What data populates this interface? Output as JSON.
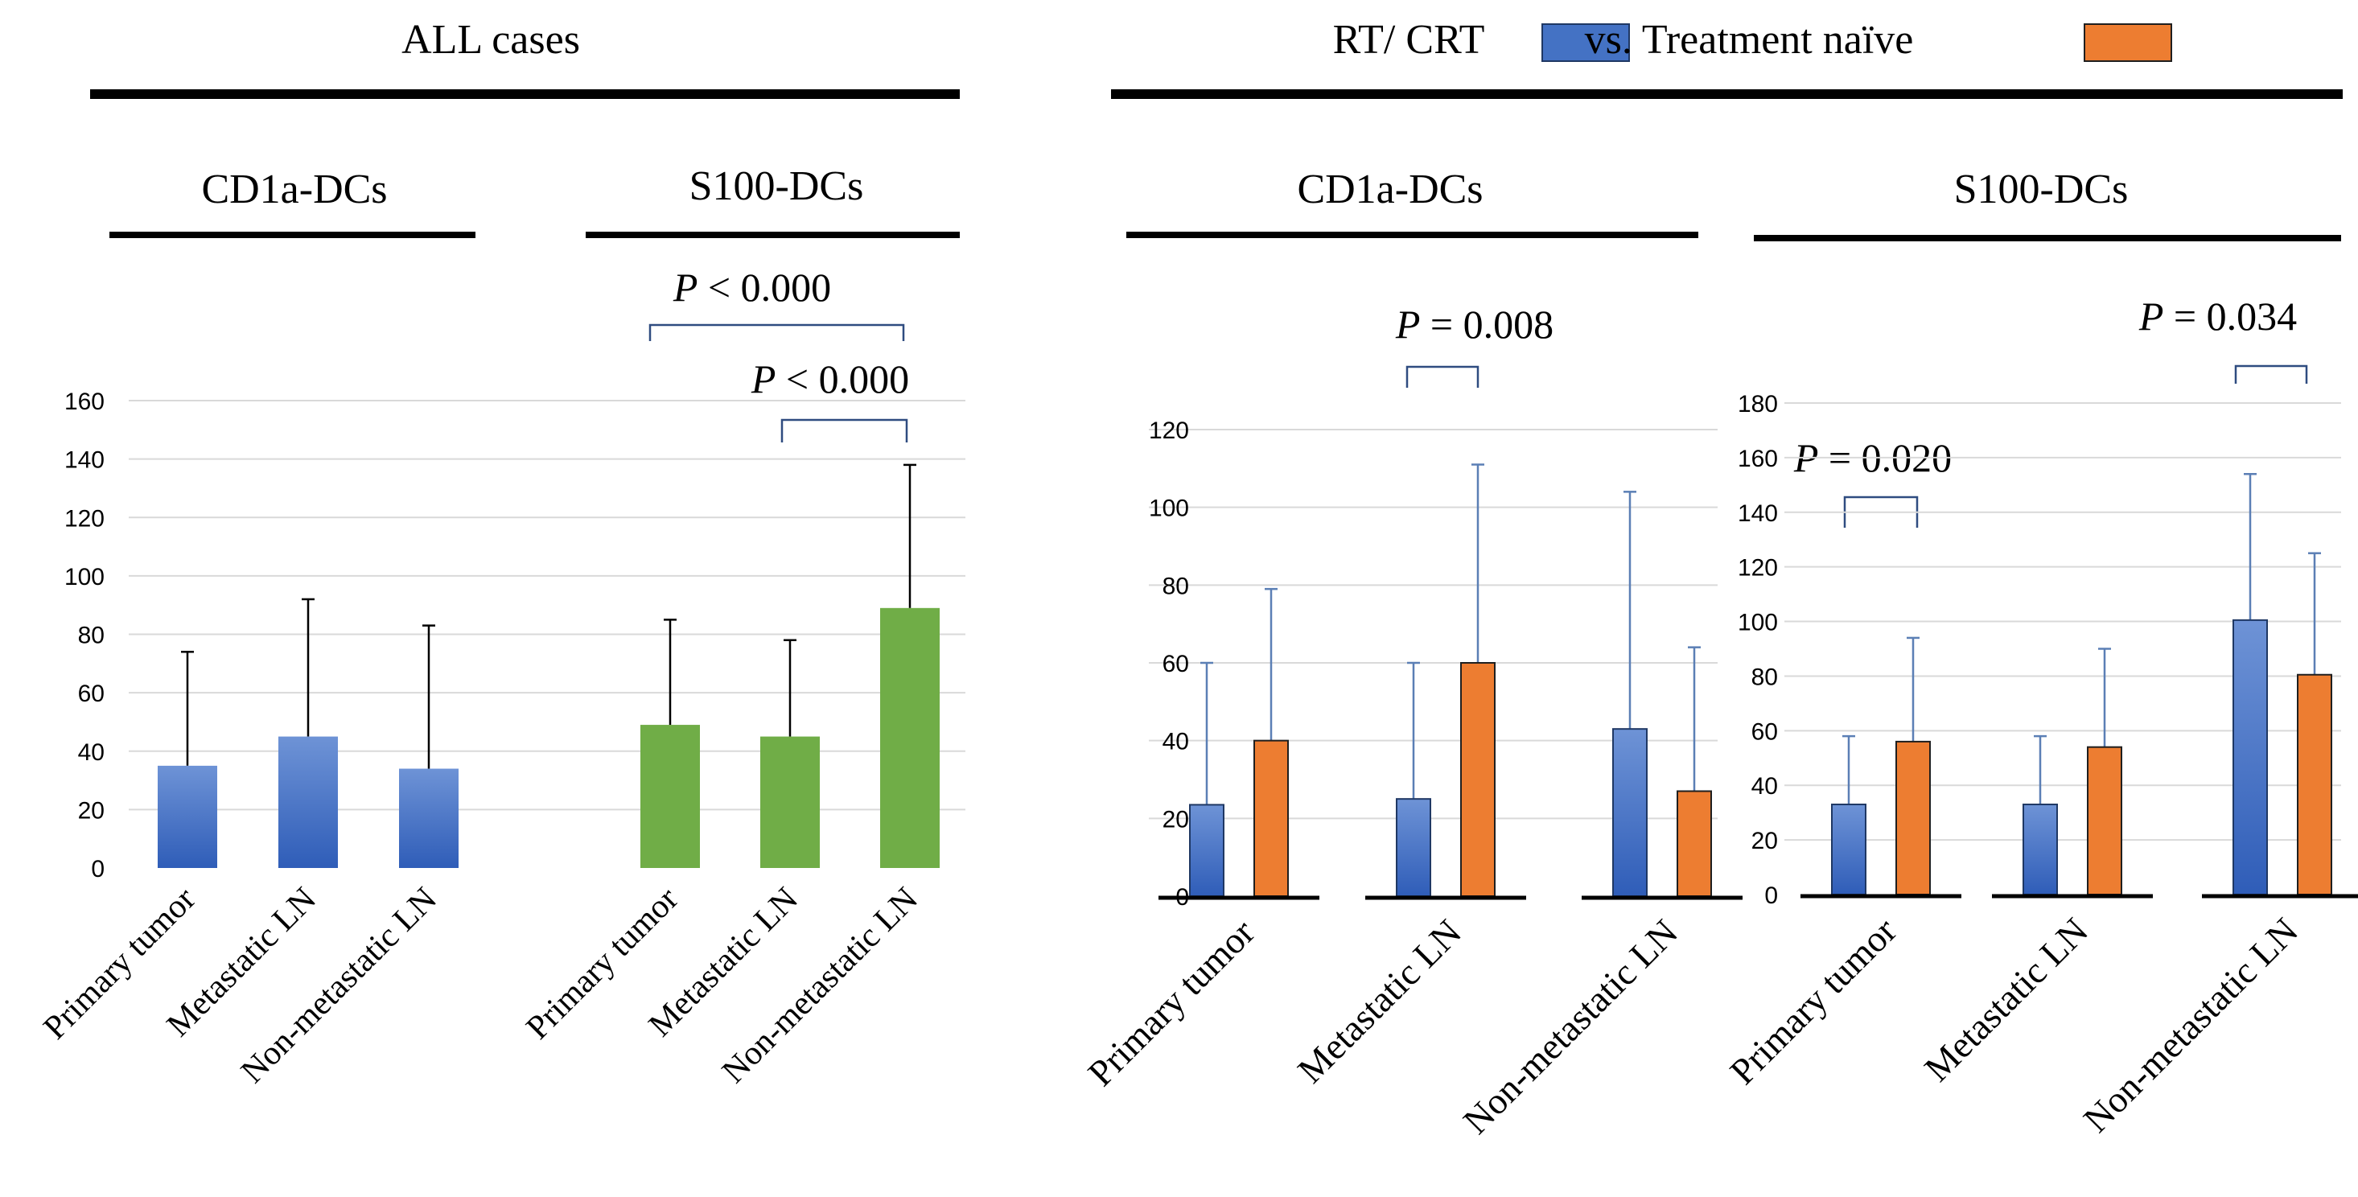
{
  "left": {
    "title": "ALL cases",
    "subtitle_cd1a": "CD1a-DCs",
    "subtitle_s100": "S100-DCs",
    "stat_1": {
      "label": "P",
      "rest": " < 0.000"
    },
    "stat_2": {
      "label": "P",
      "rest": " < 0.000"
    }
  },
  "right": {
    "title_part1": "RT/ CRT",
    "title_part2": "vs. Treatment naïve",
    "legend": [
      {
        "name": "RT/ CRT",
        "color": "#4472C4"
      },
      {
        "name": "Treatment naïve",
        "color": "#ED7D31"
      }
    ],
    "subtitle_cd1a": "CD1a-DCs",
    "subtitle_s100": "S100-DCs",
    "stat_cd1a": {
      "label": "P",
      "rest": " = 0.008"
    },
    "stat_s100_primary": {
      "label": "P",
      "rest": " = 0.020"
    },
    "stat_s100_nonmet": {
      "label": "P",
      "rest": " = 0.034"
    }
  },
  "colors": {
    "blue": "#4472C4",
    "green": "#70AD47",
    "orange": "#ED7D31"
  },
  "chart_data": [
    {
      "type": "bar",
      "title": "ALL cases",
      "groups": [
        {
          "name": "CD1a-DCs",
          "categories": [
            "Primary tumor",
            "Metastatic LN",
            "Non-metastatic LN"
          ],
          "values": [
            35,
            45,
            34
          ],
          "error_upper": [
            74,
            92,
            83
          ],
          "color": "#4472C4"
        },
        {
          "name": "S100-DCs",
          "categories": [
            "Primary tumor",
            "Metastatic LN",
            "Non-metastatic LN"
          ],
          "values": [
            49,
            45,
            89
          ],
          "error_upper": [
            85,
            78,
            138
          ],
          "color": "#70AD47"
        }
      ],
      "ylim": [
        0,
        160
      ],
      "yticks": [
        0,
        20,
        40,
        60,
        80,
        100,
        120,
        140,
        160
      ],
      "grid": true
    },
    {
      "type": "bar",
      "title": "CD1a-DCs",
      "categories": [
        "Primary tumor",
        "Metastatic LN",
        "Non-metastatic LN"
      ],
      "series": [
        {
          "name": "RT/ CRT",
          "values": [
            23.5,
            25,
            43
          ],
          "error_upper": [
            60,
            60,
            104
          ]
        },
        {
          "name": "Treatment naïve",
          "values": [
            40,
            60,
            27
          ],
          "error_upper": [
            79,
            111,
            64
          ]
        }
      ],
      "ylim": [
        0,
        120
      ],
      "yticks": [
        0,
        20,
        40,
        60,
        80,
        100,
        120
      ],
      "grid": true
    },
    {
      "type": "bar",
      "title": "S100-DCs",
      "categories": [
        "Primary tumor",
        "Metastatic LN",
        "Non-metastatic LN"
      ],
      "series": [
        {
          "name": "RT/ CRT",
          "values": [
            33,
            33,
            100.5
          ],
          "error_upper": [
            58,
            58,
            154
          ]
        },
        {
          "name": "Treatment naïve",
          "values": [
            56,
            54,
            80.5
          ],
          "error_upper": [
            94,
            90,
            125
          ]
        }
      ],
      "ylim": [
        0,
        180
      ],
      "yticks": [
        0,
        20,
        40,
        60,
        80,
        100,
        120,
        140,
        160,
        180
      ],
      "grid": true
    }
  ]
}
